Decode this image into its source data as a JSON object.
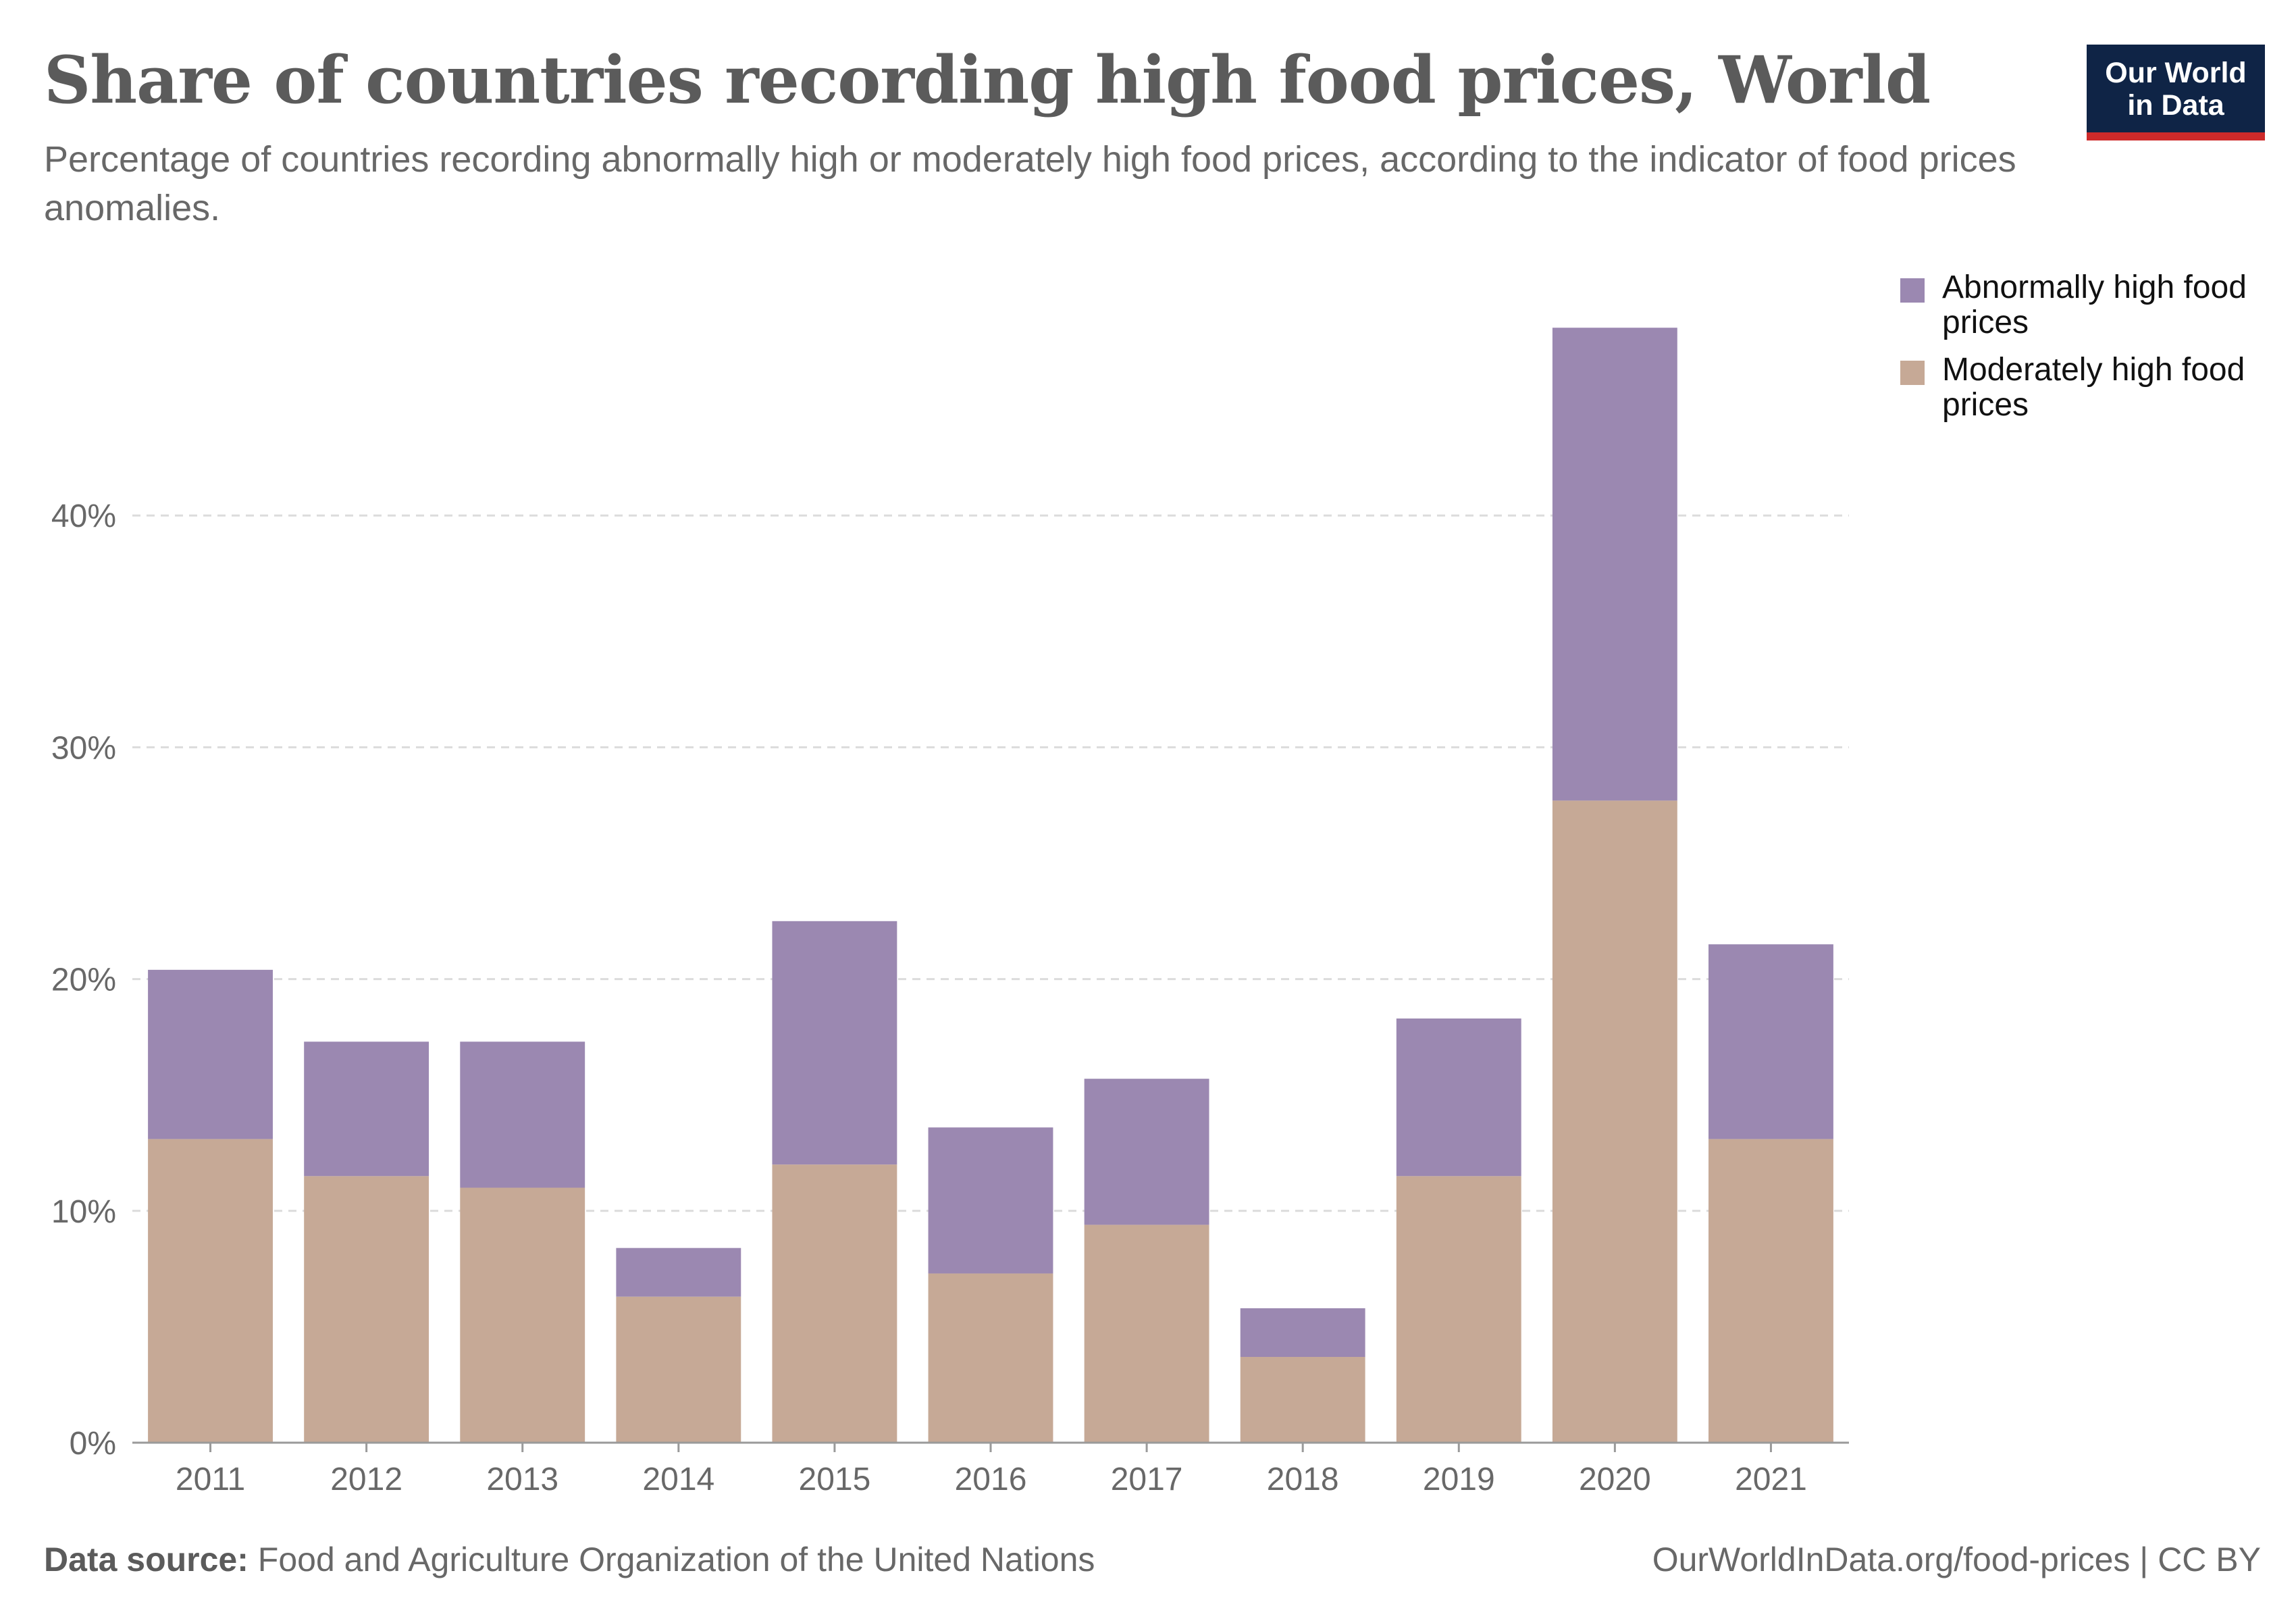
{
  "header": {
    "title": "Share of countries recording high food prices, World",
    "subtitle": "Percentage of countries recording abnormally high or moderately high food prices, according to the indicator of food prices anomalies."
  },
  "logo": {
    "line1": "Our World",
    "line2": "in Data"
  },
  "footer": {
    "source_label": "Data source:",
    "source_text": "Food and Agriculture Organization of the United Nations",
    "url": "OurWorldInData.org/food-prices | CC BY"
  },
  "chart_data": {
    "type": "bar",
    "stacked": true,
    "categories": [
      "2011",
      "2012",
      "2013",
      "2014",
      "2015",
      "2016",
      "2017",
      "2018",
      "2019",
      "2020",
      "2021"
    ],
    "series": [
      {
        "name": "Moderately high food prices",
        "color": "#c6a996",
        "values": [
          13.1,
          11.5,
          11.0,
          6.3,
          12.0,
          7.3,
          9.4,
          3.7,
          11.5,
          27.7,
          13.1
        ]
      },
      {
        "name": "Abnormally high food prices",
        "color": "#9b88b1",
        "values": [
          7.3,
          5.8,
          6.3,
          2.1,
          10.5,
          6.3,
          6.3,
          2.1,
          6.8,
          20.4,
          8.4
        ]
      }
    ],
    "ylim": [
      0,
      50
    ],
    "yticks": [
      0,
      10,
      20,
      30,
      40
    ],
    "ytick_labels": [
      "0%",
      "10%",
      "20%",
      "30%",
      "40%"
    ],
    "grid": true,
    "legend_position": "top-right",
    "xlabel": "",
    "ylabel": ""
  }
}
